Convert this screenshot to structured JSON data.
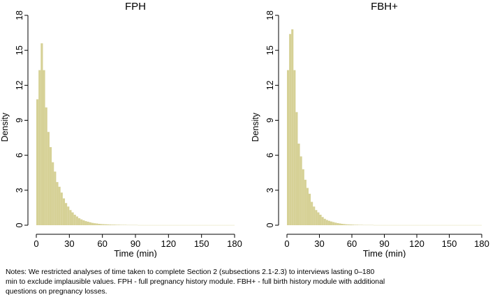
{
  "chart_data": [
    {
      "type": "bar",
      "title": "FPH",
      "xlabel": "Time (min)",
      "ylabel": "Density",
      "xlim": [
        0,
        180
      ],
      "ylim": [
        0,
        18
      ],
      "xticks": [
        "0",
        "30",
        "60",
        "90",
        "120",
        "150",
        "180"
      ],
      "yticks": [
        "0",
        "3",
        "6",
        "9",
        "12",
        "15",
        "18"
      ],
      "bar_color": "#d6d196",
      "bin_width": 2,
      "values": [
        10.8,
        13.3,
        15.6,
        13.3,
        10.1,
        8.0,
        6.7,
        5.4,
        4.6,
        3.7,
        3.3,
        2.8,
        2.3,
        1.9,
        1.6,
        1.3,
        1.1,
        0.9,
        0.75,
        0.6,
        0.5,
        0.42,
        0.35,
        0.3,
        0.25,
        0.2,
        0.17,
        0.15,
        0.12,
        0.1,
        0.09,
        0.08,
        0.07,
        0.06,
        0.05,
        0.05,
        0.04,
        0.04,
        0.03,
        0.03,
        0.03,
        0.02,
        0.02,
        0.02,
        0.02,
        0.02,
        0.01,
        0.01,
        0.01,
        0.01,
        0.01,
        0.01,
        0.01,
        0.01,
        0.01,
        0.01,
        0.01,
        0.01,
        0.01,
        0.01,
        0.01,
        0.01,
        0.01,
        0.01,
        0.01,
        0.01,
        0.01,
        0.01,
        0.01,
        0.01,
        0.01,
        0.01,
        0.01,
        0.01,
        0.01,
        0.01,
        0.01,
        0.01,
        0.01,
        0.01,
        0.01,
        0.01,
        0.01,
        0.01,
        0.01,
        0.01,
        0.01,
        0.01,
        0.01,
        0.01
      ]
    },
    {
      "type": "bar",
      "title": "FBH+",
      "xlabel": "Time (min)",
      "ylabel": "Density",
      "xlim": [
        0,
        180
      ],
      "ylim": [
        0,
        18
      ],
      "xticks": [
        "0",
        "30",
        "60",
        "90",
        "120",
        "150",
        "180"
      ],
      "yticks": [
        "0",
        "3",
        "6",
        "9",
        "12",
        "15",
        "18"
      ],
      "bar_color": "#d6d196",
      "bin_width": 2,
      "values": [
        13.3,
        16.4,
        16.8,
        13.3,
        9.7,
        7.0,
        5.9,
        4.8,
        3.9,
        3.2,
        2.7,
        2.0,
        1.6,
        1.3,
        1.1,
        0.9,
        0.7,
        0.55,
        0.45,
        0.38,
        0.32,
        0.27,
        0.22,
        0.18,
        0.15,
        0.12,
        0.1,
        0.08,
        0.07,
        0.06,
        0.05,
        0.04,
        0.04,
        0.03,
        0.03,
        0.02,
        0.02,
        0.02,
        0.02,
        0.02,
        0.01,
        0.01,
        0.01,
        0.01,
        0.01,
        0.01,
        0.01,
        0.01,
        0.01,
        0.01,
        0.01,
        0.01,
        0.01,
        0.01,
        0.01,
        0.01,
        0.01,
        0.01,
        0.01,
        0.01,
        0.01,
        0.01,
        0.01,
        0.01,
        0.01,
        0.01,
        0.01,
        0.01,
        0.01,
        0.01,
        0.01,
        0.01,
        0.01,
        0.01,
        0.01,
        0.01,
        0.01,
        0.01,
        0.01,
        0.01,
        0.01,
        0.01,
        0.01,
        0.01,
        0.01,
        0.01,
        0.01,
        0.01,
        0.01,
        0.01
      ]
    }
  ],
  "notes": {
    "line1": "Notes: We restricted analyses of time taken to complete Section 2 (subsections 2.1-2.3) to interviews lasting 0–180",
    "line2": "min to exclude implausible values. FPH - full pregnancy history module. FBH+ - full birth history module with additional",
    "line3": "questions on pregnancy losses."
  }
}
